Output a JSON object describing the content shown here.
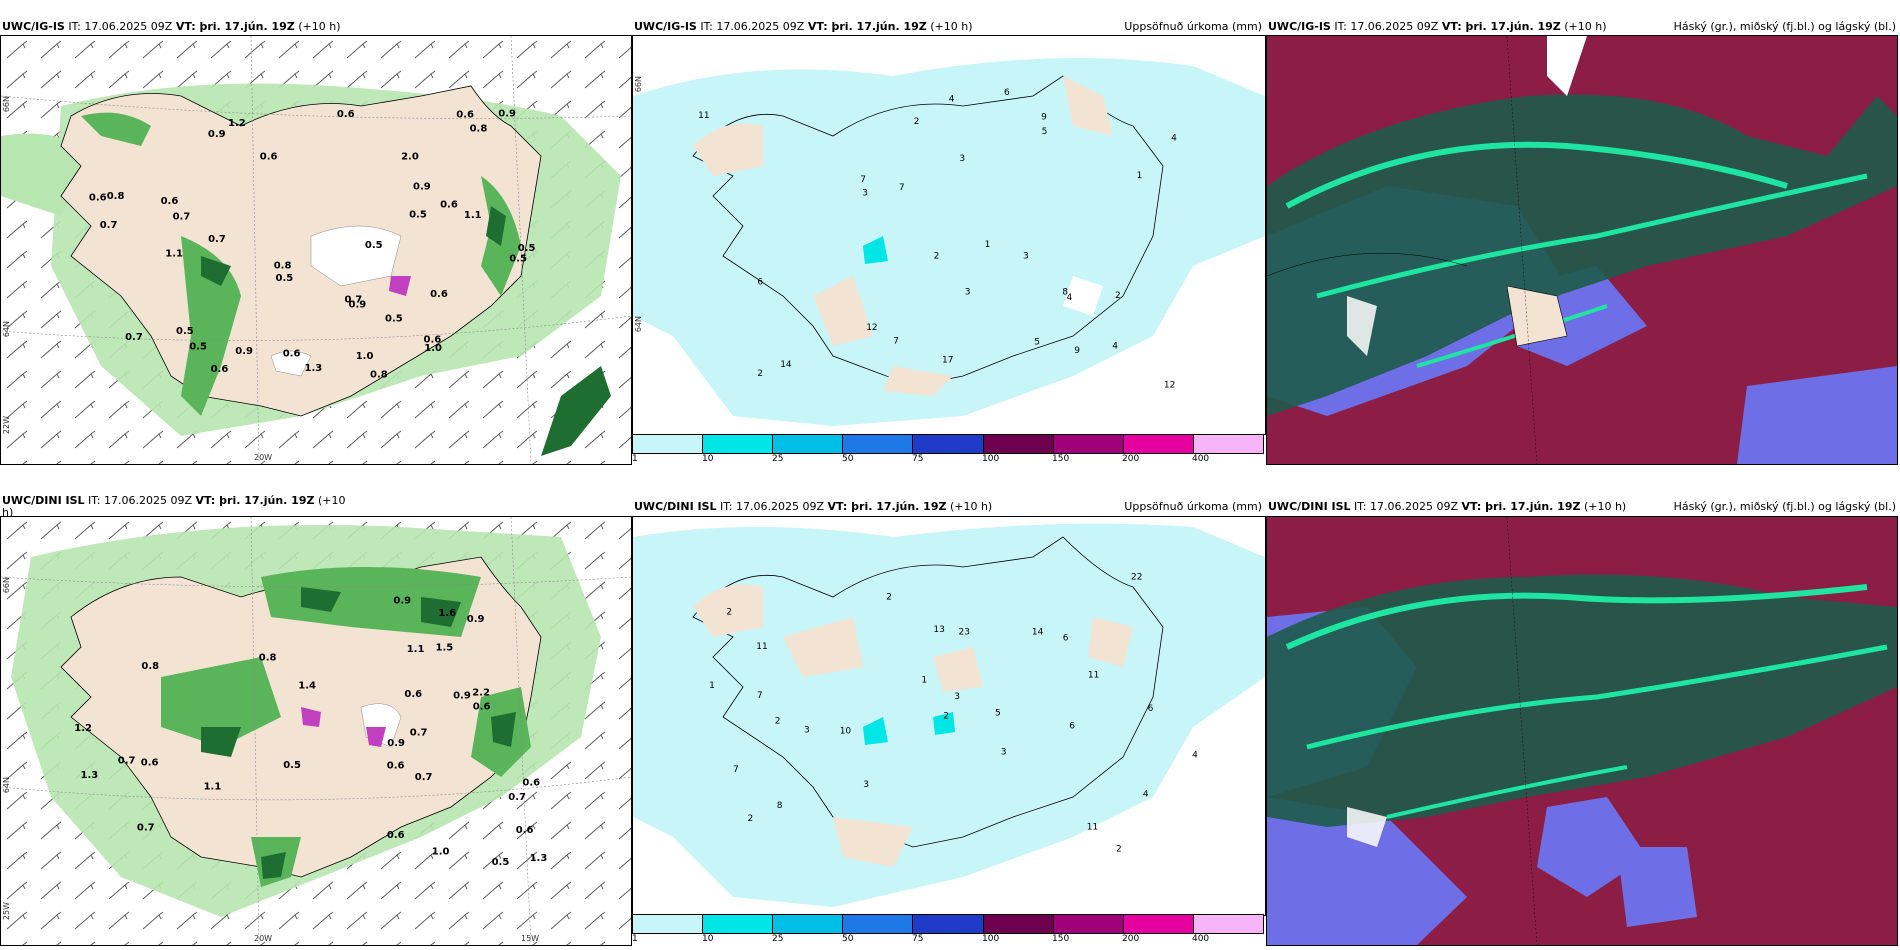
{
  "panels": {
    "p1": {
      "model": "UWC/IG-IS",
      "it": "IT: 17.06.2025 09Z",
      "vt": "VT: þri. 17.jún. 19Z",
      "lead": "(+10 h)",
      "right_title": ""
    },
    "p2": {
      "model": "UWC/IG-IS",
      "it": "IT: 17.06.2025 09Z",
      "vt": "VT: þri. 17.jún. 19Z",
      "lead": "(+10 h)",
      "right_title": "Uppsöfnuð úrkoma (mm)"
    },
    "p3": {
      "model": "UWC/IG-IS",
      "it": "IT: 17.06.2025 09Z",
      "vt": "VT: þri. 17.jún. 19Z",
      "lead": "(+10 h)",
      "right_title": "Háský (gr.), miðský (fj.bl.) og lágský (bl.)"
    },
    "p4": {
      "model": "UWC/DINI ISL",
      "it": "IT: 17.06.2025 09Z",
      "vt": "VT: þri. 17.jún. 19Z",
      "lead": "(+10",
      "lead2": "h)",
      "right_title": ""
    },
    "p5": {
      "model": "UWC/DINI ISL",
      "it": "IT: 17.06.2025 09Z",
      "vt": "VT: þri. 17.jún. 19Z",
      "lead": "(+10 h)",
      "right_title": "Uppsöfnuð úrkoma (mm)"
    },
    "p6": {
      "model": "UWC/DINI ISL",
      "it": "IT: 17.06.2025 09Z",
      "vt": "VT: þri. 17.jún. 19Z",
      "lead": "(+10 h)",
      "right_title": "Háský (gr.), miðský (fj.bl.) og lágský (bl.)"
    }
  },
  "axis_labels": {
    "lat66": "66N",
    "lat64": "64N",
    "lon20": "20W",
    "lon15": "15W",
    "lon25": "25W"
  },
  "precip_colorbar": {
    "labels": [
      "1",
      "10",
      "25",
      "50",
      "75",
      "100",
      "150",
      "200",
      "400"
    ],
    "colors": [
      "#c8f5f8",
      "#00e6e6",
      "#00bfe6",
      "#1e78e6",
      "#1e3cc8",
      "#6e0050",
      "#a0007a",
      "#e600a0",
      "#f5b4f5"
    ]
  },
  "map_colors": {
    "land": "#f2e3d3",
    "light_green": "#b8e6b0",
    "mid_green": "#5ab45a",
    "dark_green": "#1e6e32",
    "precip_light": "#c8f5f8",
    "cloud_high": "#1e5a4a",
    "cloud_mid": "#8c1e46",
    "cloud_low": "#6e6ee6",
    "cloud_edge": "#1ee6a0"
  },
  "panel_values": {
    "p1": [
      "0.8",
      "0.9",
      "0.5",
      "0.6",
      "0.6",
      "1.0",
      "0.5",
      "0.7",
      "0.5",
      "0.5",
      "0.7",
      "0.6",
      "0.8",
      "0.7",
      "0.5",
      "0.6",
      "0.7",
      "0.8",
      "0.6",
      "1.1",
      "0.6",
      "0.9",
      "0.6",
      "1.0",
      "0.5",
      "0.9",
      "1.1",
      "0.7",
      "1.3",
      "0.6",
      "0.5",
      "0.9",
      "2.0",
      "0.9",
      "1.2",
      "0.6",
      "0.6",
      "0.8",
      "0.5"
    ],
    "p2": [
      "2",
      "2",
      "1",
      "3",
      "2",
      "6",
      "4",
      "9",
      "9",
      "12",
      "12",
      "3",
      "7",
      "4",
      "5",
      "7",
      "8",
      "6",
      "2",
      "4",
      "11",
      "14",
      "17",
      "3",
      "4",
      "5",
      "7",
      "3",
      "1"
    ],
    "p4": [
      "0.6",
      "0.6",
      "0.9",
      "0.7",
      "0.6",
      "1.5",
      "2.2",
      "1.4",
      "0.6",
      "1.0",
      "0.7",
      "0.9",
      "1.3",
      "0.7",
      "1.1",
      "0.5",
      "0.9",
      "0.7",
      "1.6",
      "0.8",
      "0.5",
      "1.2",
      "0.6",
      "0.9",
      "0.6",
      "0.7",
      "0.8",
      "1.1",
      "1.3",
      "0.6"
    ],
    "p5": [
      "2",
      "2",
      "3",
      "2",
      "4",
      "11",
      "8",
      "10",
      "6",
      "13",
      "14",
      "11",
      "3",
      "2",
      "5",
      "7",
      "6",
      "3",
      "1",
      "2",
      "22",
      "23",
      "11",
      "4",
      "6",
      "7",
      "3",
      "2",
      "1"
    ]
  }
}
